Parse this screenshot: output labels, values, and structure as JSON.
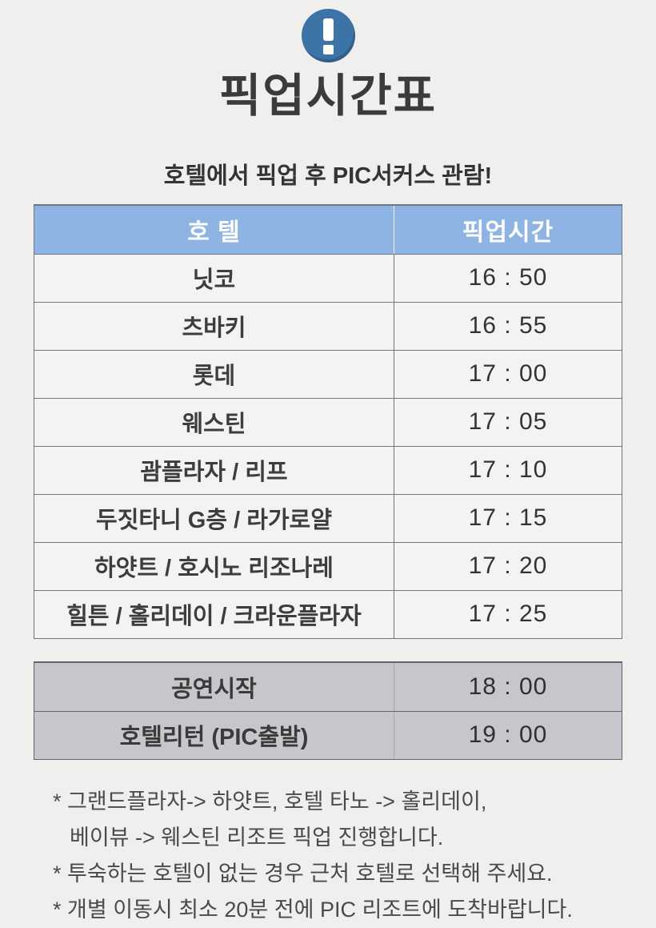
{
  "page": {
    "title": "픽업시간표",
    "subtitle": "호텔에서 픽업 후 PIC서커스 관람!"
  },
  "colors": {
    "page_bg": "#f1efee",
    "icon_blue": "#3d74a7",
    "header_blue": "#8db4e2",
    "row_bg": "#f5f3f1",
    "gray_table_bg": "#c7c6ca",
    "table_border": "#6d7486",
    "text_dark": "#3a3a3a"
  },
  "pickup_table": {
    "headers": [
      "호 텔",
      "픽업시간"
    ],
    "rows": [
      {
        "hotel": "닛코",
        "time": "16 : 50"
      },
      {
        "hotel": "츠바키",
        "time": "16 : 55"
      },
      {
        "hotel": "롯데",
        "time": "17 : 00"
      },
      {
        "hotel": "웨스틴",
        "time": "17 : 05"
      },
      {
        "hotel": "괌플라자 / 리프",
        "time": "17 : 10"
      },
      {
        "hotel": "두짓타니 G층 / 라가로얄",
        "time": "17 : 15"
      },
      {
        "hotel": "하얏트 / 호시노 리조나레",
        "time": "17 : 20"
      },
      {
        "hotel": "힐튼 / 홀리데이 / 크라운플라자",
        "time": "17 : 25"
      }
    ]
  },
  "schedule_table": {
    "rows": [
      {
        "label": "공연시작",
        "time": "18 : 00"
      },
      {
        "label": "호텔리턴 (PIC출발)",
        "time": "19 : 00"
      }
    ]
  },
  "notes": {
    "lines": [
      "* 그랜드플라자-> 하얏트, 호텔 타노 -> 홀리데이,",
      "베이뷰 -> 웨스틴 리조트 픽업 진행합니다.",
      "* 투숙하는 호텔이 없는 경우 근처 호텔로 선택해 주세요.",
      "* 개별 이동시 최소 20분 전에 PIC 리조트에 도착바랍니다."
    ]
  }
}
